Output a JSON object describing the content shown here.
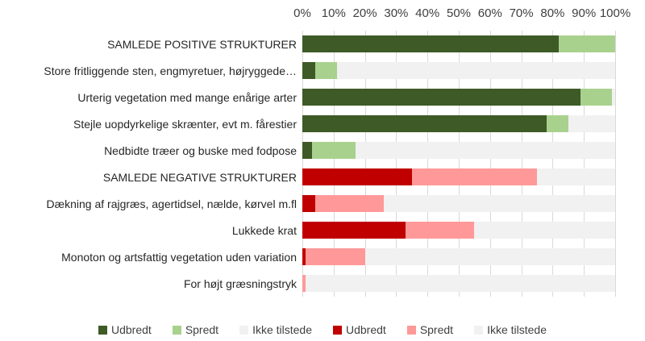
{
  "chart": {
    "colors": {
      "dark_green": "#3e5a27",
      "light_green": "#a9d18e",
      "gray": "#f1f1f1",
      "dark_red": "#c00000",
      "pink": "#ff9999",
      "gridline": "#d9d9d9",
      "text": "#262626"
    },
    "legend": [
      {
        "label": "Udbredt",
        "color_key": "dark_green"
      },
      {
        "label": "Spredt",
        "color_key": "light_green"
      },
      {
        "label": "Ikke tilstede",
        "color_key": "gray"
      },
      {
        "label": "Udbredt",
        "color_key": "dark_red"
      },
      {
        "label": "Spredt",
        "color_key": "pink"
      },
      {
        "label": "Ikke tilstede",
        "color_key": "gray"
      }
    ]
  },
  "chart_data": {
    "type": "bar",
    "orientation": "horizontal",
    "stacked": true,
    "axis_position": "top",
    "legend_position": "bottom",
    "grid": true,
    "x_range": [
      0,
      100
    ],
    "x_ticks": [
      "0%",
      "10%",
      "20%",
      "30%",
      "40%",
      "50%",
      "60%",
      "70%",
      "80%",
      "90%",
      "100%"
    ],
    "series_names": [
      "Udbredt",
      "Spredt",
      "Ikke tilstede"
    ],
    "categories": [
      "SAMLEDE POSITIVE STRUKTURER",
      "Store fritliggende sten, engmyretuer, højryggede…",
      "Urterig vegetation med mange enårige arter",
      "Stejle uopdyrkelige skrænter, evt m. fårestier",
      "Nedbidte træer og buske med fodpose",
      "SAMLEDE NEGATIVE STRUKTURER",
      "Dækning af rajgræs, agertidsel, nælde, kørvel m.fl",
      "Lukkede krat",
      "Monoton og artsfattig vegetation uden variation",
      "For højt græsningstryk"
    ],
    "rows": [
      {
        "label": "SAMLEDE POSITIVE STRUKTURER",
        "group": "positive",
        "udbredt": 82,
        "spredt": 18,
        "ikke_tilstede": 0
      },
      {
        "label": "Store fritliggende sten, engmyretuer, højryggede…",
        "group": "positive",
        "udbredt": 4,
        "spredt": 7,
        "ikke_tilstede": 89
      },
      {
        "label": "Urterig vegetation med mange enårige arter",
        "group": "positive",
        "udbredt": 89,
        "spredt": 10,
        "ikke_tilstede": 1
      },
      {
        "label": "Stejle uopdyrkelige skrænter, evt m. fårestier",
        "group": "positive",
        "udbredt": 78,
        "spredt": 7,
        "ikke_tilstede": 15
      },
      {
        "label": "Nedbidte træer og buske med fodpose",
        "group": "positive",
        "udbredt": 3,
        "spredt": 14,
        "ikke_tilstede": 83
      },
      {
        "label": "SAMLEDE NEGATIVE STRUKTURER",
        "group": "negative",
        "udbredt": 35,
        "spredt": 40,
        "ikke_tilstede": 25
      },
      {
        "label": "Dækning af rajgræs, agertidsel, nælde, kørvel m.fl",
        "group": "negative",
        "udbredt": 4,
        "spredt": 22,
        "ikke_tilstede": 74
      },
      {
        "label": "Lukkede krat",
        "group": "negative",
        "udbredt": 33,
        "spredt": 22,
        "ikke_tilstede": 45
      },
      {
        "label": "Monoton og artsfattig vegetation uden variation",
        "group": "negative",
        "udbredt": 1,
        "spredt": 19,
        "ikke_tilstede": 80
      },
      {
        "label": "For højt græsningstryk",
        "group": "negative",
        "udbredt": 0,
        "spredt": 1,
        "ikke_tilstede": 99
      }
    ]
  }
}
